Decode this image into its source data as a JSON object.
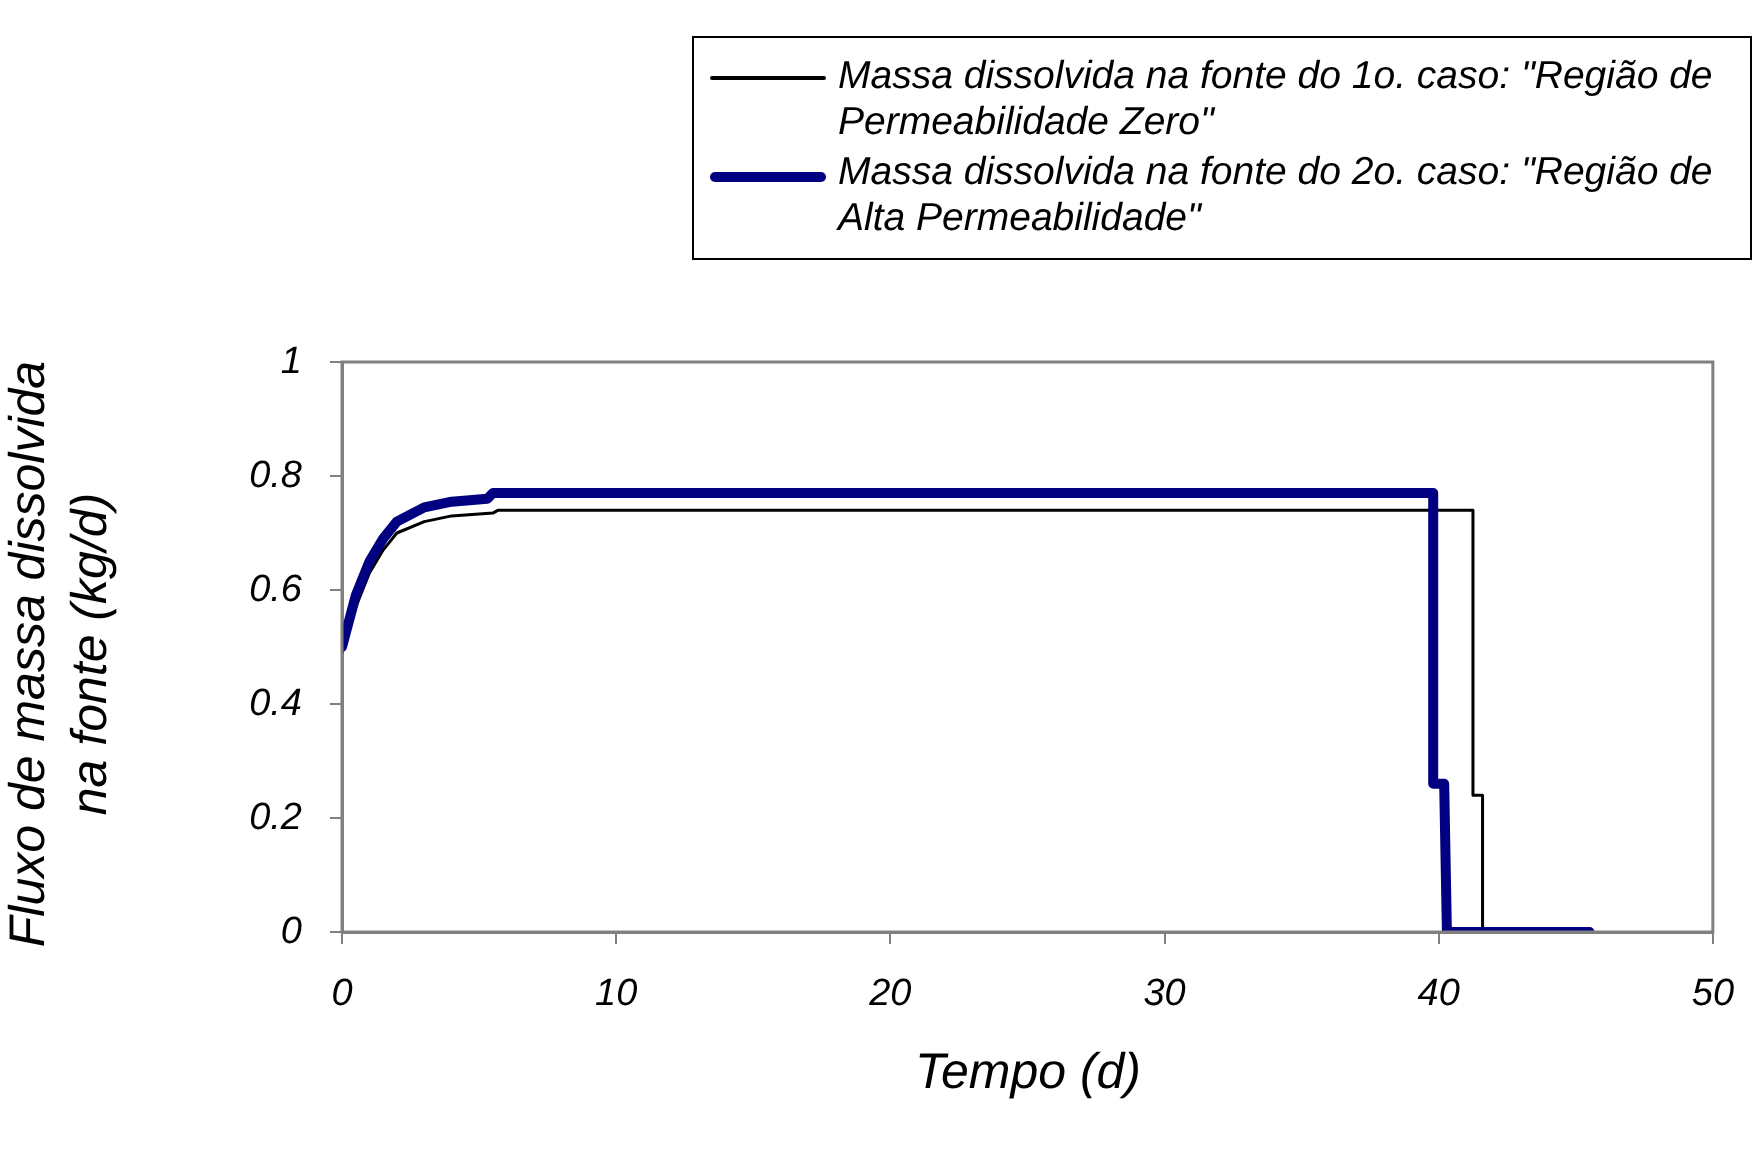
{
  "chart_data": {
    "type": "line",
    "xlabel": "Tempo (d)",
    "ylabel": "Fluxo de massa dissolvida na fonte (kg/d)",
    "xlim": [
      0,
      50
    ],
    "xticks": [
      0,
      10,
      20,
      30,
      40,
      50
    ],
    "ylim": [
      0,
      1
    ],
    "yticks": [
      0,
      0.2,
      0.4,
      0.6,
      0.8,
      1
    ],
    "grid": false,
    "legend": "top right",
    "marker": "none",
    "line_style": "solid",
    "series": [
      {
        "name": "Massa dissolvida na fonte do 1o. caso: \"Região de Permeabilidade Zero\"",
        "color": "#000000",
        "x": [
          0,
          0.5,
          1,
          1.5,
          2,
          3,
          4,
          5.5,
          5.7,
          41.25,
          41.25,
          41.6,
          41.6,
          45.5
        ],
        "values": [
          0.49,
          0.57,
          0.63,
          0.67,
          0.7,
          0.72,
          0.73,
          0.735,
          0.74,
          0.74,
          0.24,
          0.24,
          0,
          0
        ]
      },
      {
        "name": "Massa dissolvida na fonte do 2o. caso: \"Região de Alta Permeabilidade\"",
        "color": "#000080",
        "x": [
          0,
          0.5,
          1,
          1.5,
          2,
          3,
          4,
          5.3,
          5.5,
          39.8,
          39.8,
          40.2,
          40.3,
          45.5
        ],
        "values": [
          0.5,
          0.59,
          0.65,
          0.69,
          0.72,
          0.745,
          0.755,
          0.76,
          0.77,
          0.77,
          0.26,
          0.26,
          0,
          0
        ]
      }
    ]
  }
}
